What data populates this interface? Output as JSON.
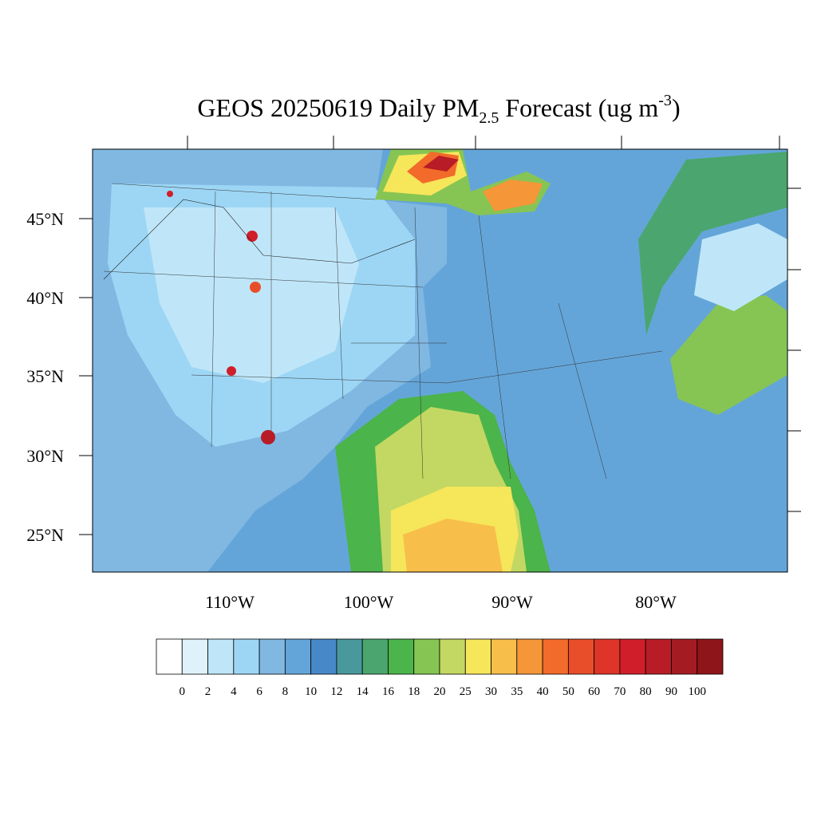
{
  "title": {
    "main": "GEOS 20250619 Daily PM",
    "sub": "2.5",
    "rest": " Forecast (ug m",
    "sup": "-3",
    "end": ")"
  },
  "map": {
    "lat_labels": [
      "45°N",
      "40°N",
      "35°N",
      "30°N",
      "25°N"
    ],
    "lon_labels": [
      "110°W",
      "100°W",
      "90°W",
      "80°W"
    ]
  },
  "colorbar": {
    "levels": [
      0,
      2,
      4,
      6,
      8,
      10,
      12,
      14,
      16,
      18,
      20,
      25,
      30,
      35,
      40,
      50,
      60,
      70,
      80,
      90,
      100
    ],
    "colors": [
      "#ffffff",
      "#dff2fb",
      "#bfe6f8",
      "#9dd6f5",
      "#80b8e2",
      "#64a5d9",
      "#4789c8",
      "#48989c",
      "#4aa66e",
      "#4bb44a",
      "#86c553",
      "#c3d862",
      "#f6e65a",
      "#f8be4a",
      "#f59638",
      "#f26b2a",
      "#e94e2a",
      "#df3428",
      "#d01f2a",
      "#b81c26",
      "#a51b22",
      "#8e1519"
    ]
  }
}
